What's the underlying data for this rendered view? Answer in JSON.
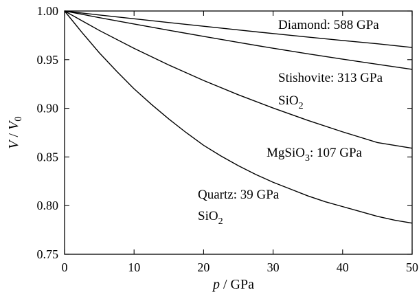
{
  "chart_data": {
    "type": "line",
    "xlabel": "p / GPa",
    "ylabel": "V / V0",
    "xlim": [
      0,
      50
    ],
    "ylim": [
      0.75,
      1.0
    ],
    "x_ticks": [
      0,
      10,
      20,
      30,
      40,
      50
    ],
    "x_tick_labels": [
      "0",
      "10",
      "20",
      "30",
      "40",
      "50"
    ],
    "y_ticks": [
      0.75,
      0.8,
      0.85,
      0.9,
      0.95,
      1.0
    ],
    "y_tick_labels": [
      "0.75",
      "0.80",
      "0.85",
      "0.90",
      "0.95",
      "1.00"
    ],
    "grid": false,
    "legend": "none",
    "series": [
      {
        "label_text": "Diamond: 588 GPa",
        "bulk_modulus": 588,
        "x": [
          0,
          5,
          10,
          15,
          20,
          25,
          30,
          35,
          40,
          45,
          50
        ],
        "y": [
          1.0,
          0.9959,
          0.992,
          0.9881,
          0.9843,
          0.9805,
          0.9768,
          0.9732,
          0.9697,
          0.9663,
          0.9625
        ]
      },
      {
        "label_text": "Stishovite: 313 GPa",
        "label_text_2": "SiO",
        "label_subscript": "2",
        "bulk_modulus": 313,
        "x": [
          0,
          5,
          10,
          15,
          20,
          25,
          30,
          35,
          40,
          45,
          50
        ],
        "y": [
          1.0,
          0.9932,
          0.9866,
          0.9802,
          0.9739,
          0.9677,
          0.9617,
          0.956,
          0.9505,
          0.9452,
          0.94
        ]
      },
      {
        "label_text": "MgSiO",
        "label_subscript": "3",
        "label_text_after": ": 107 GPa",
        "bulk_modulus": 107,
        "x": [
          0,
          5,
          10,
          15,
          20,
          25,
          30,
          35,
          40,
          45,
          50
        ],
        "y": [
          1.0,
          0.98,
          0.9616,
          0.9445,
          0.9286,
          0.9139,
          0.9003,
          0.8876,
          0.8758,
          0.8648,
          0.859
        ]
      },
      {
        "label_text": "Quartz: 39 GPa",
        "label_text_2": "SiO",
        "label_subscript": "2",
        "bulk_modulus": 39,
        "x": [
          0,
          2.5,
          5,
          7.5,
          10,
          12.5,
          15,
          17.5,
          20,
          22.5,
          25,
          27.5,
          30,
          32.5,
          35,
          37.5,
          40,
          42.5,
          45,
          47.5,
          50
        ],
        "y": [
          1.0,
          0.978,
          0.957,
          0.938,
          0.92,
          0.904,
          0.889,
          0.875,
          0.862,
          0.851,
          0.841,
          0.832,
          0.824,
          0.817,
          0.81,
          0.804,
          0.799,
          0.794,
          0.789,
          0.785,
          0.782
        ]
      }
    ]
  }
}
